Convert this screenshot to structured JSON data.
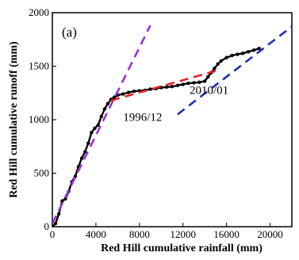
{
  "chart_data": {
    "type": "line",
    "panel_label": "(a)",
    "xlabel": "Red Hill cumulative rainfall (mm)",
    "ylabel": "Red Hill cumulative runoff (mm)",
    "xlim": [
      0,
      22000
    ],
    "ylim": [
      0,
      2000
    ],
    "xticks": [
      0,
      4000,
      8000,
      12000,
      16000,
      20000
    ],
    "yticks": [
      0,
      500,
      1000,
      1500,
      2000
    ],
    "grid": false,
    "annotations": [
      {
        "text": "1996/12",
        "x": 6500,
        "y": 990
      },
      {
        "text": "2010/01",
        "x": 12600,
        "y": 1240
      }
    ],
    "series": [
      {
        "style": "scatter-line",
        "color": "#000000",
        "x": [
          0,
          300,
          600,
          900,
          1200,
          1500,
          1800,
          2100,
          2400,
          2700,
          3000,
          3300,
          3600,
          3900,
          4200,
          4500,
          4800,
          5100,
          5400,
          5700,
          6000,
          6500,
          7000,
          7500,
          8000,
          8500,
          9000,
          9500,
          10000,
          10500,
          11000,
          11500,
          12000,
          12500,
          13000,
          13500,
          14000,
          14300,
          14600,
          14900,
          15200,
          15500,
          16000,
          16500,
          17000,
          17500,
          18000,
          18500,
          19000
        ],
        "y": [
          0,
          30,
          120,
          240,
          260,
          330,
          420,
          470,
          560,
          640,
          700,
          780,
          880,
          920,
          950,
          1030,
          1100,
          1150,
          1190,
          1210,
          1230,
          1240,
          1255,
          1265,
          1270,
          1275,
          1285,
          1290,
          1300,
          1305,
          1310,
          1320,
          1330,
          1340,
          1345,
          1350,
          1360,
          1400,
          1440,
          1480,
          1520,
          1550,
          1580,
          1600,
          1610,
          1620,
          1635,
          1650,
          1665
        ]
      },
      {
        "style": "dashed",
        "color": "#9b30d9",
        "x": [
          0,
          9000
        ],
        "y": [
          30,
          1880
        ]
      },
      {
        "style": "dashed",
        "color": "#e8202a",
        "x": [
          5400,
          15500
        ],
        "y": [
          1180,
          1470
        ]
      },
      {
        "style": "dashed",
        "color": "#1e2fb5",
        "x": [
          11500,
          22000
        ],
        "y": [
          1050,
          1870
        ]
      }
    ]
  }
}
